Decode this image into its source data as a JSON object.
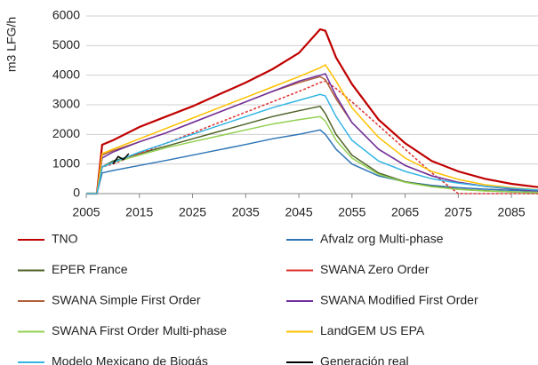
{
  "chart_data": {
    "type": "line",
    "y_label": "m3 LFG/h",
    "x": [
      2005,
      2007,
      2008,
      2010,
      2015,
      2020,
      2025,
      2030,
      2035,
      2040,
      2045,
      2049,
      2050,
      2052,
      2055,
      2060,
      2065,
      2070,
      2075,
      2080,
      2085,
      2090
    ],
    "xlim": [
      2005,
      2090
    ],
    "xticks": [
      2005,
      2015,
      2025,
      2035,
      2045,
      2055,
      2065,
      2075,
      2085
    ],
    "ylim": [
      0,
      6000
    ],
    "yticks": [
      0,
      1000,
      2000,
      3000,
      4000,
      5000,
      6000
    ],
    "grid": true,
    "series": [
      {
        "name": "TNO",
        "color": "#c00000",
        "values": [
          0,
          0,
          1650,
          1800,
          2250,
          2600,
          2950,
          3350,
          3750,
          4200,
          4750,
          5550,
          5500,
          4600,
          3700,
          2500,
          1700,
          1100,
          750,
          500,
          330,
          220
        ]
      },
      {
        "name": "Afvalz org Multi-phase",
        "color": "#2e75b6",
        "values": [
          0,
          0,
          700,
          780,
          950,
          1120,
          1300,
          1480,
          1660,
          1850,
          2000,
          2150,
          2000,
          1500,
          1000,
          600,
          400,
          280,
          200,
          150,
          110,
          80
        ]
      },
      {
        "name": "EPER France",
        "color": "#4f6228",
        "values": [
          0,
          0,
          900,
          1100,
          1350,
          1600,
          1850,
          2100,
          2350,
          2600,
          2800,
          2950,
          2700,
          2000,
          1300,
          700,
          400,
          250,
          150,
          100,
          60,
          40
        ]
      },
      {
        "name": "SWANA Zero Order",
        "color": "#e03030",
        "values": [
          0,
          0,
          900,
          1000,
          1350,
          1700,
          2050,
          2400,
          2750,
          3100,
          3450,
          3750,
          3800,
          3550,
          3100,
          2300,
          1500,
          700,
          0,
          0,
          0,
          0
        ]
      },
      {
        "name": "SWANA Simple First Order",
        "color": "#b0603a",
        "values": [
          0,
          0,
          1300,
          1450,
          1750,
          2050,
          2400,
          2750,
          3100,
          3450,
          3750,
          3950,
          3850,
          3200,
          2400,
          1500,
          950,
          600,
          380,
          250,
          160,
          100
        ]
      },
      {
        "name": "SWANA Modified First Order",
        "color": "#7030a0",
        "values": [
          0,
          0,
          1200,
          1400,
          1750,
          2050,
          2400,
          2750,
          3100,
          3450,
          3800,
          4000,
          4050,
          3300,
          2400,
          1500,
          950,
          600,
          380,
          250,
          160,
          100
        ]
      },
      {
        "name": "SWANA First Order Multi-phase",
        "color": "#92d050",
        "values": [
          0,
          0,
          900,
          1050,
          1300,
          1550,
          1750,
          1950,
          2150,
          2350,
          2500,
          2600,
          2450,
          1800,
          1200,
          650,
          380,
          230,
          140,
          90,
          60,
          40
        ]
      },
      {
        "name": "LandGEM US EPA",
        "color": "#ffc000",
        "values": [
          0,
          0,
          1350,
          1500,
          1850,
          2200,
          2550,
          2900,
          3250,
          3600,
          3950,
          4250,
          4350,
          3800,
          2900,
          1900,
          1200,
          750,
          480,
          300,
          200,
          130
        ]
      },
      {
        "name": "Modelo Mexicano de Biogás",
        "color": "#33b5e5",
        "values": [
          0,
          0,
          900,
          1050,
          1400,
          1700,
          2000,
          2300,
          2600,
          2900,
          3150,
          3350,
          3300,
          2600,
          1800,
          1100,
          750,
          500,
          350,
          250,
          180,
          120
        ]
      },
      {
        "name": "Generación real",
        "color": "#000000",
        "x": [
          2010,
          2011,
          2012,
          2013
        ],
        "values": [
          1000,
          1250,
          1150,
          1350
        ]
      }
    ]
  }
}
